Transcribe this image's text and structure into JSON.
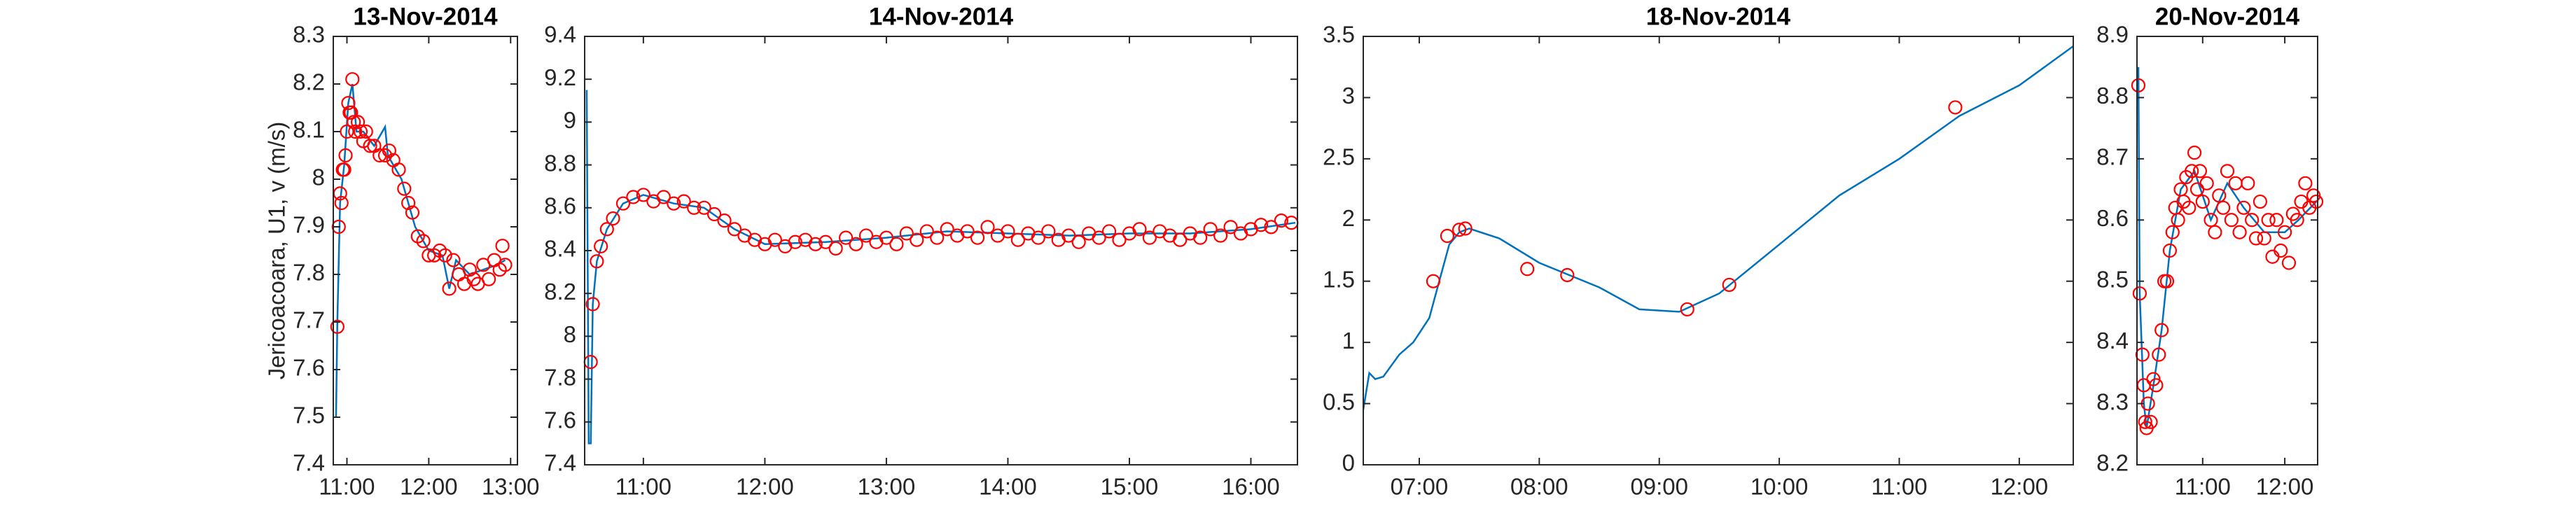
{
  "chart_data": [
    {
      "type": "line",
      "title": "13-Nov-2014",
      "ylabel": "Jericoacoara, U1, v (m/s)",
      "xlim": [
        "10:50",
        "13:05"
      ],
      "xticks": [
        "11:00",
        "12:00",
        "13:00"
      ],
      "ylim": [
        7.4,
        8.3
      ],
      "yticks": [
        7.4,
        7.5,
        7.6,
        7.7,
        7.8,
        7.9,
        8,
        8.1,
        8.2,
        8.3
      ],
      "series": [
        {
          "mode": "line",
          "color": "#0072bd",
          "x": [
            "10:52",
            "10:53",
            "10:55",
            "10:58",
            "11:01",
            "11:04",
            "11:07",
            "11:12",
            "11:20",
            "11:28",
            "11:30",
            "11:40",
            "11:50",
            "12:00",
            "12:10",
            "12:15",
            "12:20",
            "12:30",
            "12:40",
            "12:50",
            "12:56"
          ],
          "values": [
            7.5,
            7.7,
            7.95,
            8.03,
            8.16,
            8.2,
            8.1,
            8.1,
            8.07,
            8.11,
            8.05,
            8.0,
            7.9,
            7.85,
            7.84,
            7.77,
            7.83,
            7.8,
            7.81,
            7.82,
            7.83
          ]
        },
        {
          "mode": "markers",
          "color": "#ff0000",
          "x": [
            "10:53",
            "10:54",
            "10:55",
            "10:56",
            "10:57",
            "10:58",
            "10:59",
            "11:00",
            "11:01",
            "11:02",
            "11:03",
            "11:04",
            "11:05",
            "11:06",
            "11:08",
            "11:10",
            "11:12",
            "11:14",
            "11:17",
            "11:20",
            "11:24",
            "11:28",
            "11:31",
            "11:34",
            "11:38",
            "11:42",
            "11:45",
            "11:48",
            "11:52",
            "11:56",
            "12:00",
            "12:04",
            "12:08",
            "12:12",
            "12:15",
            "12:18",
            "12:22",
            "12:26",
            "12:30",
            "12:33",
            "12:36",
            "12:40",
            "12:44",
            "12:48",
            "12:52",
            "12:54",
            "12:56"
          ],
          "values": [
            7.69,
            7.9,
            7.97,
            7.95,
            8.02,
            8.02,
            8.05,
            8.1,
            8.16,
            8.14,
            8.14,
            8.21,
            8.12,
            8.1,
            8.12,
            8.1,
            8.08,
            8.1,
            8.07,
            8.07,
            8.05,
            8.05,
            8.06,
            8.04,
            8.02,
            7.98,
            7.95,
            7.93,
            7.88,
            7.87,
            7.84,
            7.84,
            7.85,
            7.84,
            7.77,
            7.83,
            7.8,
            7.78,
            7.81,
            7.79,
            7.78,
            7.82,
            7.79,
            7.83,
            7.81,
            7.86,
            7.82
          ]
        }
      ]
    },
    {
      "type": "line",
      "title": "14-Nov-2014",
      "xlim": [
        "10:31",
        "16:23"
      ],
      "xticks": [
        "11:00",
        "12:00",
        "13:00",
        "14:00",
        "15:00",
        "16:00"
      ],
      "ylim": [
        7.4,
        9.4
      ],
      "yticks": [
        7.4,
        7.6,
        7.8,
        8,
        8.2,
        8.4,
        8.6,
        8.8,
        9,
        9.2,
        9.4
      ],
      "series": [
        {
          "mode": "line",
          "color": "#0072bd",
          "x": [
            "10:32",
            "10:33",
            "10:34",
            "10:35",
            "10:37",
            "10:42",
            "10:50",
            "11:00",
            "11:15",
            "11:30",
            "11:45",
            "12:00",
            "12:30",
            "13:00",
            "13:30",
            "14:00",
            "14:30",
            "15:00",
            "15:30",
            "16:00",
            "16:22"
          ],
          "values": [
            9.15,
            7.5,
            7.5,
            8.15,
            8.35,
            8.5,
            8.62,
            8.66,
            8.62,
            8.6,
            8.5,
            8.43,
            8.44,
            8.46,
            8.49,
            8.48,
            8.47,
            8.48,
            8.48,
            8.5,
            8.53
          ]
        },
        {
          "mode": "markers",
          "color": "#ff0000",
          "x": [
            "10:34",
            "10:35",
            "10:37",
            "10:39",
            "10:42",
            "10:45",
            "10:50",
            "10:55",
            "11:00",
            "11:05",
            "11:10",
            "11:15",
            "11:20",
            "11:25",
            "11:30",
            "11:35",
            "11:40",
            "11:45",
            "11:50",
            "11:55",
            "12:00",
            "12:05",
            "12:10",
            "12:15",
            "12:20",
            "12:25",
            "12:30",
            "12:35",
            "12:40",
            "12:45",
            "12:50",
            "12:55",
            "13:00",
            "13:05",
            "13:10",
            "13:15",
            "13:20",
            "13:25",
            "13:30",
            "13:35",
            "13:40",
            "13:45",
            "13:50",
            "13:55",
            "14:00",
            "14:05",
            "14:10",
            "14:15",
            "14:20",
            "14:25",
            "14:30",
            "14:35",
            "14:40",
            "14:45",
            "14:50",
            "14:55",
            "15:00",
            "15:05",
            "15:10",
            "15:15",
            "15:20",
            "15:25",
            "15:30",
            "15:35",
            "15:40",
            "15:45",
            "15:50",
            "15:55",
            "16:00",
            "16:05",
            "16:10",
            "16:15",
            "16:20"
          ],
          "values": [
            7.88,
            8.15,
            8.35,
            8.42,
            8.5,
            8.55,
            8.62,
            8.65,
            8.66,
            8.63,
            8.65,
            8.62,
            8.63,
            8.6,
            8.6,
            8.57,
            8.54,
            8.5,
            8.47,
            8.45,
            8.43,
            8.45,
            8.42,
            8.44,
            8.45,
            8.43,
            8.44,
            8.41,
            8.46,
            8.43,
            8.47,
            8.44,
            8.46,
            8.43,
            8.48,
            8.45,
            8.49,
            8.46,
            8.5,
            8.47,
            8.49,
            8.46,
            8.51,
            8.47,
            8.49,
            8.45,
            8.48,
            8.46,
            8.49,
            8.45,
            8.47,
            8.44,
            8.48,
            8.46,
            8.49,
            8.45,
            8.48,
            8.5,
            8.46,
            8.49,
            8.47,
            8.45,
            8.48,
            8.46,
            8.5,
            8.47,
            8.51,
            8.48,
            8.5,
            8.52,
            8.51,
            8.54,
            8.53
          ]
        }
      ]
    },
    {
      "type": "line",
      "title": "18-Nov-2014",
      "xlim": [
        "06:32",
        "12:27"
      ],
      "xticks": [
        "07:00",
        "08:00",
        "09:00",
        "10:00",
        "11:00",
        "12:00"
      ],
      "ylim": [
        0,
        3.5
      ],
      "yticks": [
        0,
        0.5,
        1,
        1.5,
        2,
        2.5,
        3,
        3.5
      ],
      "series": [
        {
          "mode": "line",
          "color": "#0072bd",
          "x": [
            "06:32",
            "06:35",
            "06:38",
            "06:42",
            "06:50",
            "06:57",
            "07:05",
            "07:10",
            "07:15",
            "07:20",
            "07:25",
            "07:40",
            "08:00",
            "08:30",
            "08:50",
            "09:10",
            "09:30",
            "10:00",
            "10:30",
            "11:00",
            "11:30",
            "12:00",
            "12:27"
          ],
          "values": [
            0.45,
            0.75,
            0.7,
            0.72,
            0.9,
            1.0,
            1.2,
            1.5,
            1.8,
            1.9,
            1.93,
            1.85,
            1.65,
            1.45,
            1.27,
            1.25,
            1.4,
            1.8,
            2.2,
            2.5,
            2.85,
            3.1,
            3.42
          ]
        },
        {
          "mode": "markers",
          "color": "#ff0000",
          "x": [
            "07:07",
            "07:14",
            "07:20",
            "07:23",
            "07:54",
            "08:14",
            "09:14",
            "09:35",
            "11:28"
          ],
          "values": [
            1.5,
            1.87,
            1.92,
            1.93,
            1.6,
            1.55,
            1.27,
            1.47,
            2.92
          ]
        }
      ]
    },
    {
      "type": "line",
      "title": "20-Nov-2014",
      "xlim": [
        "10:12",
        "12:24"
      ],
      "xticks": [
        "11:00",
        "12:00"
      ],
      "ylim": [
        8.2,
        8.9
      ],
      "yticks": [
        8.2,
        8.3,
        8.4,
        8.5,
        8.6,
        8.7,
        8.8,
        8.9
      ],
      "series": [
        {
          "mode": "line",
          "color": "#0072bd",
          "x": [
            "10:13",
            "10:14",
            "10:17",
            "10:19",
            "10:24",
            "10:30",
            "10:36",
            "10:44",
            "10:54",
            "11:06",
            "11:18",
            "11:30",
            "11:45",
            "12:00",
            "12:10",
            "12:23"
          ],
          "values": [
            8.85,
            8.48,
            8.3,
            8.26,
            8.33,
            8.42,
            8.55,
            8.65,
            8.68,
            8.6,
            8.66,
            8.62,
            8.58,
            8.58,
            8.6,
            8.63
          ]
        },
        {
          "mode": "markers",
          "color": "#ff0000",
          "x": [
            "10:13",
            "10:14",
            "10:16",
            "10:17",
            "10:18",
            "10:19",
            "10:20",
            "10:22",
            "10:24",
            "10:26",
            "10:28",
            "10:30",
            "10:32",
            "10:34",
            "10:36",
            "10:38",
            "10:40",
            "10:42",
            "10:44",
            "10:46",
            "10:48",
            "10:50",
            "10:52",
            "10:54",
            "10:56",
            "10:58",
            "11:00",
            "11:03",
            "11:06",
            "11:09",
            "11:12",
            "11:15",
            "11:18",
            "11:21",
            "11:24",
            "11:27",
            "11:30",
            "11:33",
            "11:36",
            "11:39",
            "11:42",
            "11:45",
            "11:48",
            "11:51",
            "11:54",
            "11:57",
            "12:00",
            "12:03",
            "12:06",
            "12:09",
            "12:12",
            "12:15",
            "12:18",
            "12:21",
            "12:23"
          ],
          "values": [
            8.82,
            8.48,
            8.38,
            8.33,
            8.27,
            8.26,
            8.3,
            8.27,
            8.34,
            8.33,
            8.38,
            8.42,
            8.5,
            8.5,
            8.55,
            8.58,
            8.62,
            8.6,
            8.65,
            8.63,
            8.67,
            8.62,
            8.68,
            8.71,
            8.65,
            8.68,
            8.63,
            8.66,
            8.6,
            8.58,
            8.64,
            8.62,
            8.68,
            8.6,
            8.66,
            8.58,
            8.62,
            8.66,
            8.6,
            8.57,
            8.63,
            8.57,
            8.6,
            8.54,
            8.6,
            8.55,
            8.58,
            8.53,
            8.61,
            8.6,
            8.63,
            8.66,
            8.62,
            8.64,
            8.63
          ]
        }
      ]
    }
  ]
}
